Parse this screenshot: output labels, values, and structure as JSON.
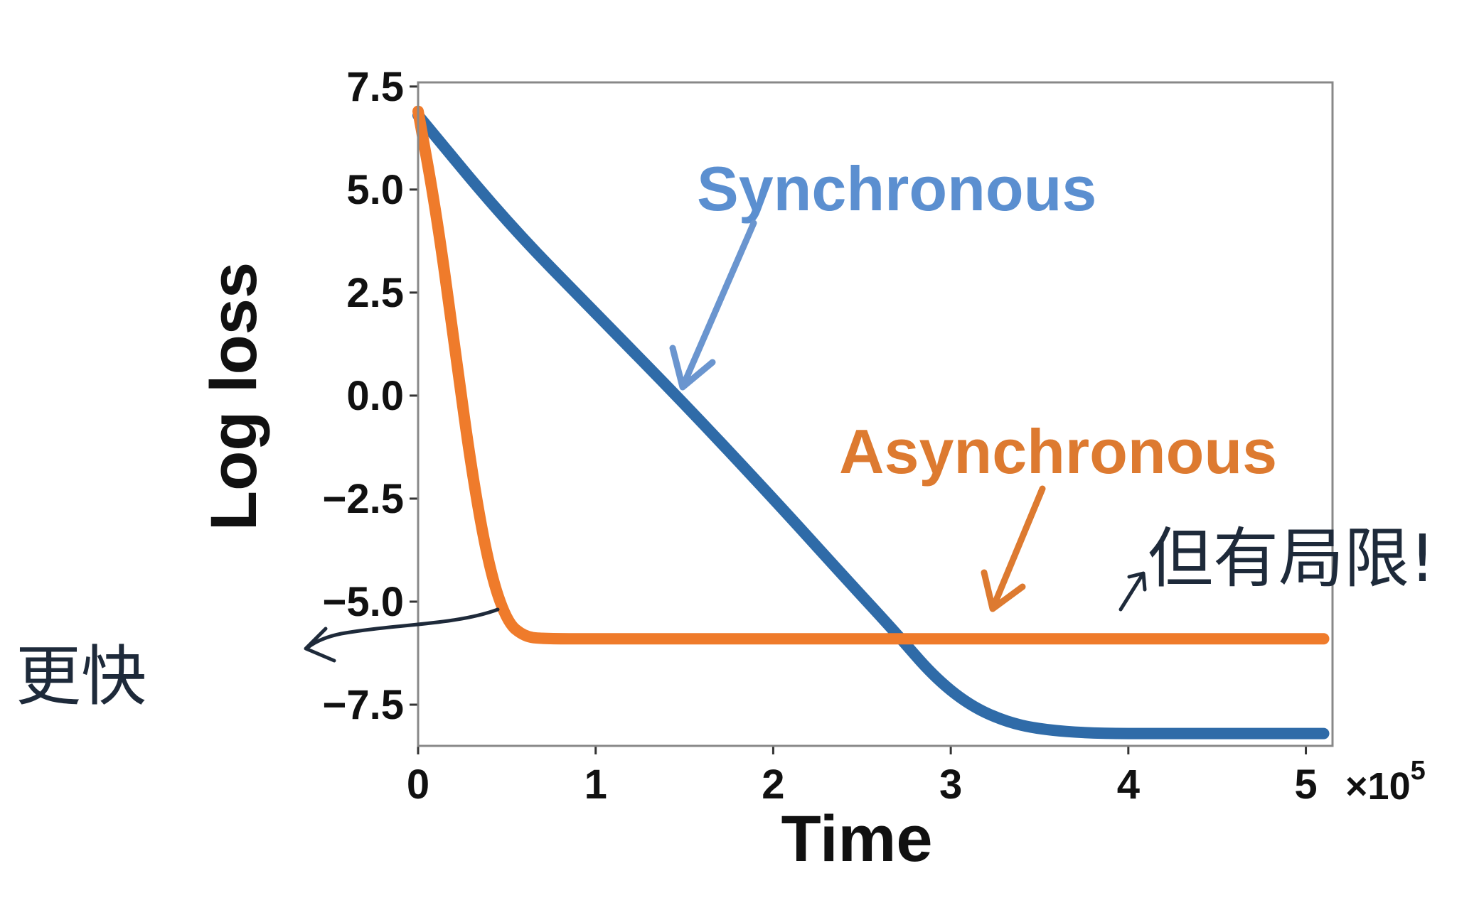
{
  "chart_data": {
    "type": "line",
    "xlabel": "Time",
    "ylabel": "Log loss",
    "x_offset_label": "×10",
    "x_offset_exponent": "5",
    "xlim": [
      0,
      5.15
    ],
    "ylim": [
      -8.5,
      7.6
    ],
    "xticks": [
      0,
      1,
      2,
      3,
      4,
      5
    ],
    "xtick_labels": [
      "0",
      "1",
      "2",
      "3",
      "4",
      "5"
    ],
    "yticks": [
      7.5,
      5.0,
      2.5,
      0.0,
      -2.5,
      -5.0,
      -7.5
    ],
    "ytick_labels": [
      "7.5",
      "5.0",
      "2.5",
      "0.0",
      "−2.5",
      "−5.0",
      "−7.5"
    ],
    "grid": false,
    "series": [
      {
        "name": "Synchronous",
        "color": "#2f6ba8",
        "label_color": "#5b8fd0",
        "x": [
          0,
          0.5,
          1.0,
          1.5,
          2.0,
          2.4,
          2.7,
          2.9,
          3.1,
          3.3,
          3.5,
          3.8,
          4.2,
          4.6,
          5.1
        ],
        "y": [
          6.8,
          4.2,
          2.0,
          -0.2,
          -2.5,
          -4.4,
          -5.8,
          -6.8,
          -7.5,
          -7.9,
          -8.1,
          -8.2,
          -8.2,
          -8.2,
          -8.2
        ]
      },
      {
        "name": "Asynchronous",
        "color": "#ef7b2b",
        "label_color": "#dd7a30",
        "x": [
          0,
          0.1,
          0.2,
          0.3,
          0.4,
          0.5,
          0.6,
          0.7,
          1.0,
          2.0,
          3.0,
          4.0,
          5.1
        ],
        "y": [
          6.9,
          4.5,
          1.4,
          -1.8,
          -4.2,
          -5.5,
          -5.85,
          -5.9,
          -5.9,
          -5.9,
          -5.9,
          -5.9,
          -5.9
        ]
      }
    ]
  },
  "annotations": {
    "faster_note": "更快",
    "limited_note": "但有局限!"
  }
}
